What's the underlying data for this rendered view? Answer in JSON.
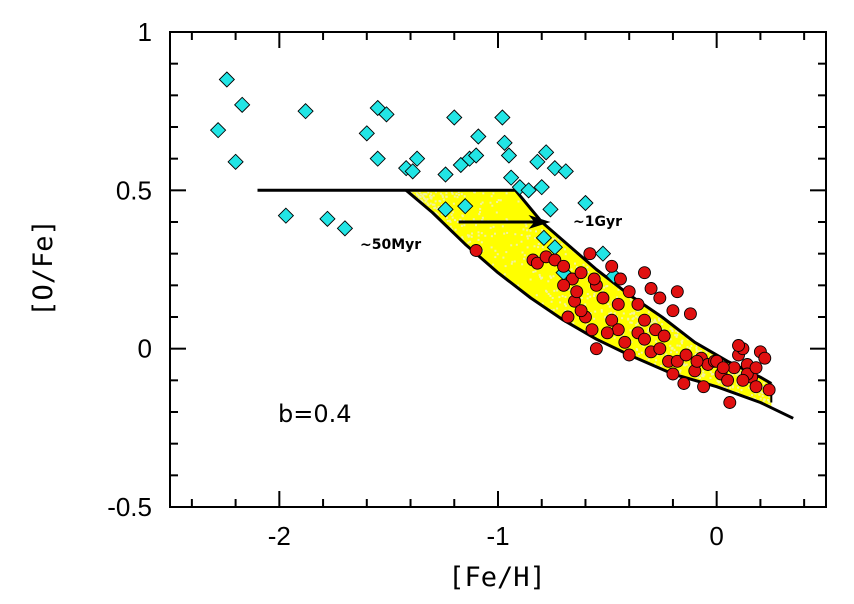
{
  "chart_data": {
    "type": "scatter",
    "title": "",
    "xlabel": "[Fe/H]",
    "ylabel": "[O/Fe]",
    "xlim": [
      -2.5,
      0.5
    ],
    "ylim": [
      -0.5,
      1.0
    ],
    "x_ticks": [
      "-2",
      "-1",
      "0"
    ],
    "x_tick_values": [
      -2,
      -1,
      0
    ],
    "y_ticks": [
      "1",
      "0.5",
      "0",
      "-0.5"
    ],
    "y_tick_values": [
      1,
      0.5,
      0,
      -0.5
    ],
    "grid": false,
    "annotations": {
      "label_50myr": "~50Myr",
      "label_1gyr": "~1Gyr",
      "parameter": "b=0.4"
    },
    "colors": {
      "cyan_series": "#22e5e5",
      "red_series": "#e01010",
      "band_fill": "#ffff00",
      "band_speckle": "#f2f2a0",
      "lines": "#000000"
    },
    "series": [
      {
        "marker": "diamond",
        "points": [
          [
            -2.24,
            0.85
          ],
          [
            -2.17,
            0.77
          ],
          [
            -2.28,
            0.69
          ],
          [
            -2.2,
            0.59
          ],
          [
            -1.88,
            0.75
          ],
          [
            -1.55,
            0.76
          ],
          [
            -1.51,
            0.74
          ],
          [
            -1.6,
            0.68
          ],
          [
            -1.55,
            0.6
          ],
          [
            -1.42,
            0.57
          ],
          [
            -1.37,
            0.6
          ],
          [
            -1.39,
            0.56
          ],
          [
            -1.2,
            0.73
          ],
          [
            -1.17,
            0.58
          ],
          [
            -1.13,
            0.6
          ],
          [
            -1.1,
            0.61
          ],
          [
            -1.09,
            0.67
          ],
          [
            -1.15,
            0.45
          ],
          [
            -1.24,
            0.55
          ],
          [
            -1.24,
            0.44
          ],
          [
            -1.97,
            0.42
          ],
          [
            -1.78,
            0.41
          ],
          [
            -1.7,
            0.38
          ],
          [
            -0.98,
            0.73
          ],
          [
            -0.97,
            0.65
          ],
          [
            -0.95,
            0.61
          ],
          [
            -0.94,
            0.54
          ],
          [
            -0.9,
            0.51
          ],
          [
            -0.86,
            0.5
          ],
          [
            -0.82,
            0.59
          ],
          [
            -0.78,
            0.62
          ],
          [
            -0.74,
            0.57
          ],
          [
            -0.69,
            0.56
          ],
          [
            -0.8,
            0.51
          ],
          [
            -0.76,
            0.44
          ],
          [
            -0.6,
            0.46
          ],
          [
            -0.52,
            0.3
          ],
          [
            -0.79,
            0.35
          ],
          [
            -0.74,
            0.32
          ],
          [
            -0.7,
            0.24
          ],
          [
            -0.47,
            0.23
          ]
        ]
      },
      {
        "marker": "circle",
        "points": [
          [
            -1.1,
            0.31
          ],
          [
            -0.84,
            0.28
          ],
          [
            -0.82,
            0.27
          ],
          [
            -0.78,
            0.29
          ],
          [
            -0.74,
            0.28
          ],
          [
            -0.7,
            0.26
          ],
          [
            -0.66,
            0.22
          ],
          [
            -0.62,
            0.24
          ],
          [
            -0.58,
            0.3
          ],
          [
            -0.55,
            0.2
          ],
          [
            -0.52,
            0.16
          ],
          [
            -0.48,
            0.26
          ],
          [
            -0.44,
            0.22
          ],
          [
            -0.4,
            0.18
          ],
          [
            -0.36,
            0.14
          ],
          [
            -0.33,
            0.24
          ],
          [
            -0.3,
            0.19
          ],
          [
            -0.26,
            0.16
          ],
          [
            -0.2,
            0.12
          ],
          [
            -0.18,
            0.18
          ],
          [
            -0.12,
            0.11
          ],
          [
            -0.7,
            0.2
          ],
          [
            -0.65,
            0.15
          ],
          [
            -0.6,
            0.1
          ],
          [
            -0.57,
            0.06
          ],
          [
            -0.55,
            0.0
          ],
          [
            -0.48,
            0.09
          ],
          [
            -0.45,
            0.06
          ],
          [
            -0.42,
            0.02
          ],
          [
            -0.4,
            -0.02
          ],
          [
            -0.36,
            0.05
          ],
          [
            -0.33,
            0.03
          ],
          [
            -0.3,
            -0.01
          ],
          [
            -0.26,
            0.0
          ],
          [
            -0.22,
            -0.04
          ],
          [
            -0.18,
            -0.04
          ],
          [
            -0.14,
            -0.02
          ],
          [
            -0.1,
            -0.07
          ],
          [
            -0.07,
            -0.03
          ],
          [
            -0.04,
            -0.05
          ],
          [
            -0.01,
            -0.04
          ],
          [
            0.02,
            -0.08
          ],
          [
            0.05,
            -0.1
          ],
          [
            0.08,
            -0.06
          ],
          [
            0.1,
            -0.02
          ],
          [
            0.12,
            0.0
          ],
          [
            0.14,
            -0.05
          ],
          [
            0.16,
            -0.09
          ],
          [
            0.18,
            -0.12
          ],
          [
            0.2,
            -0.01
          ],
          [
            0.22,
            -0.03
          ],
          [
            0.24,
            -0.13
          ],
          [
            0.06,
            -0.17
          ],
          [
            0.1,
            0.01
          ],
          [
            0.14,
            -0.08
          ],
          [
            -0.2,
            -0.08
          ],
          [
            -0.15,
            -0.11
          ],
          [
            -0.62,
            0.12
          ],
          [
            -0.68,
            0.1
          ],
          [
            -0.5,
            0.05
          ],
          [
            0.0,
            -0.04
          ],
          [
            0.03,
            -0.06
          ],
          [
            -0.06,
            -0.12
          ],
          [
            -0.09,
            -0.04
          ],
          [
            0.18,
            -0.06
          ],
          [
            -0.64,
            0.18
          ],
          [
            -0.56,
            0.22
          ],
          [
            -0.45,
            0.14
          ],
          [
            0.12,
            -0.1
          ],
          [
            -0.33,
            0.09
          ],
          [
            -0.28,
            0.06
          ],
          [
            -0.24,
            0.04
          ]
        ]
      }
    ],
    "lines": {
      "upper": [
        [
          -2.1,
          0.5
        ],
        [
          -0.92,
          0.5
        ],
        [
          -0.8,
          0.4
        ],
        [
          -0.7,
          0.34
        ],
        [
          -0.55,
          0.25
        ],
        [
          -0.4,
          0.17
        ],
        [
          -0.25,
          0.1
        ],
        [
          -0.1,
          0.02
        ],
        [
          0.05,
          -0.04
        ],
        [
          0.2,
          -0.09
        ],
        [
          0.25,
          -0.11
        ]
      ],
      "lower": [
        [
          -1.42,
          0.5
        ],
        [
          -1.3,
          0.43
        ],
        [
          -1.15,
          0.33
        ],
        [
          -1.0,
          0.24
        ],
        [
          -0.85,
          0.16
        ],
        [
          -0.7,
          0.09
        ],
        [
          -0.55,
          0.03
        ],
        [
          -0.4,
          -0.02
        ],
        [
          -0.2,
          -0.08
        ],
        [
          0.0,
          -0.12
        ],
        [
          0.2,
          -0.17
        ],
        [
          0.35,
          -0.22
        ]
      ],
      "band_right_edge": [
        [
          0.25,
          -0.11
        ],
        [
          0.25,
          -0.17
        ]
      ],
      "arrow": {
        "from": [
          -1.18,
          0.4
        ],
        "to": [
          -0.76,
          0.4
        ]
      }
    }
  }
}
